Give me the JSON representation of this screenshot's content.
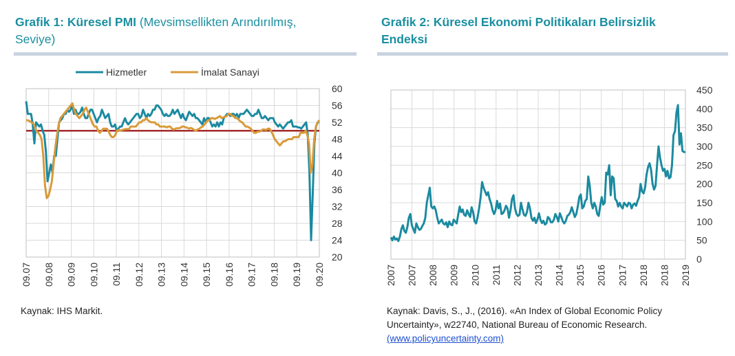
{
  "left": {
    "title_bold": "Grafik 1: Küresel PMI",
    "title_rest": " (Mevsimsellikten Arındırılmış, Seviye)",
    "source": "Kaynak: IHS Markit."
  },
  "right": {
    "title_bold": "Grafik 2: Küresel Ekonomi Politikaları Belirsizlik Endeksi",
    "source_text": "Kaynak: Davis, S., J., (2016). «An Index of Global Economic Policy Uncertainty», w22740, National Bureau of Economic Research.",
    "source_link": "(www.policyuncertainty.com)"
  },
  "colors": {
    "accent": "#1a8fa0",
    "services": "#1b8aa0",
    "manufacturing": "#d99a3a",
    "reference": "#a52a2a"
  },
  "chart_data": [
    {
      "type": "line",
      "ylim": [
        20,
        60
      ],
      "yticks": [
        "20",
        "24",
        "28",
        "32",
        "36",
        "40",
        "44",
        "48",
        "52",
        "56",
        "60"
      ],
      "xticks": [
        "09.07",
        "09.08",
        "09.09",
        "09.10",
        "09.11",
        "09.12",
        "09.13",
        "09.14",
        "09.15",
        "09.16",
        "09.17",
        "09.18",
        "09.19",
        "09.20"
      ],
      "legend_position": "top",
      "grid": true,
      "reference_line": 50,
      "series": [
        {
          "name": "Hizmetler",
          "values": [
            57,
            54,
            54,
            54,
            51.5,
            47,
            52,
            51.5,
            51,
            51.5,
            50,
            49,
            45,
            38,
            40,
            42,
            40,
            44,
            44,
            48,
            52,
            52.5,
            53,
            54,
            54,
            55,
            54.5,
            55,
            56,
            54,
            55,
            54,
            54,
            54.5,
            55.5,
            54,
            53,
            53,
            54,
            55,
            55,
            54,
            53,
            52,
            53,
            53.5,
            55,
            54,
            53,
            53.5,
            54,
            52,
            51,
            51,
            51.5,
            50,
            50.5,
            51,
            51,
            52,
            53,
            52,
            51.5,
            52,
            52.5,
            53,
            53.5,
            54,
            54,
            53,
            53.5,
            55,
            54,
            53,
            54,
            53.5,
            54,
            55,
            55,
            56,
            56,
            55.5,
            55,
            54,
            53.5,
            54,
            53.5,
            53.5,
            54,
            55,
            54,
            54.5,
            55,
            54,
            53,
            54,
            53,
            52.5,
            53.5,
            54.5,
            54,
            53.5,
            54,
            53,
            53,
            52.5,
            52,
            51.5,
            53,
            52,
            53,
            53,
            52,
            51,
            51.5,
            51,
            52,
            51,
            52,
            51.5,
            53,
            53.5,
            54,
            54,
            53.5,
            54,
            54,
            53.5,
            54,
            53,
            54,
            54,
            54,
            54.5,
            55,
            54.5,
            54,
            53.5,
            53.5,
            54,
            54,
            55,
            54,
            53,
            53,
            53.5,
            53,
            52.5,
            53,
            53,
            53,
            52,
            51.5,
            51,
            51.5,
            51,
            50.5,
            51,
            51.5,
            52,
            52,
            52.5,
            51,
            51,
            51,
            50.8,
            50.8,
            50.5,
            51,
            51.5,
            52,
            49,
            40,
            24,
            35,
            47,
            51,
            52,
            52
          ]
        },
        {
          "name": "İmalat Sanayi",
          "values": [
            52.5,
            52.5,
            52.3,
            52,
            51.8,
            51,
            50,
            49.5,
            49,
            48,
            44,
            37,
            34,
            34.5,
            36,
            38,
            42,
            46,
            49,
            51.5,
            53,
            53.5,
            54,
            54.5,
            55,
            55.5,
            56,
            56.5,
            55,
            54,
            53.5,
            53,
            53.5,
            54,
            55,
            55.5,
            54.5,
            53.5,
            52.5,
            51.5,
            51,
            51,
            50,
            49.5,
            50,
            50.5,
            50.5,
            50.5,
            50,
            49,
            48.5,
            48.5,
            49,
            50,
            50.2,
            50,
            50.2,
            50.3,
            50.4,
            50.4,
            50.4,
            51,
            51,
            51,
            51,
            51.5,
            52,
            52,
            52.5,
            52.5,
            53,
            52.5,
            52.2,
            52,
            52,
            52,
            51.5,
            51.5,
            51,
            51,
            51,
            51,
            50.8,
            51,
            51,
            50.5,
            50.3,
            50.5,
            50.6,
            50.6,
            50.7,
            51,
            51,
            50.8,
            50.7,
            50.5,
            50.7,
            50.5,
            50.2,
            50,
            50.3,
            50.5,
            50.8,
            51,
            51.5,
            52,
            52.5,
            52.5,
            53,
            53,
            52.8,
            53,
            53.2,
            53.5,
            53,
            53.2,
            53.3,
            53.5,
            54,
            54,
            53.5,
            53.5,
            53,
            53,
            52.6,
            52.2,
            52,
            51.5,
            51,
            51,
            50.8,
            50.5,
            50,
            49.5,
            49.5,
            49.8,
            49.8,
            50,
            50.3,
            50.3,
            50.2,
            50.5,
            50.5,
            49.8,
            49,
            48,
            47.5,
            47,
            46.5,
            47,
            47.5,
            47.5,
            47.8,
            48,
            48,
            48,
            48.5,
            48.5,
            48.5,
            48.5,
            49.5,
            49.5,
            49.5,
            50,
            49,
            47,
            40,
            42,
            48,
            51,
            52,
            52.5
          ]
        }
      ]
    },
    {
      "type": "line",
      "ylim": [
        0,
        450
      ],
      "yticks": [
        "0",
        "50",
        "100",
        "150",
        "200",
        "250",
        "300",
        "350",
        "400",
        "450"
      ],
      "xticks": [
        "2007",
        "2007",
        "2008",
        "2009",
        "2010",
        "2011",
        "2012",
        "2013",
        "2014",
        "2015",
        "2016",
        "2017",
        "2018",
        "2018",
        "2019"
      ],
      "grid": true,
      "series": [
        {
          "values": [
            58,
            50,
            60,
            52,
            55,
            48,
            60,
            80,
            90,
            75,
            70,
            85,
            110,
            120,
            90,
            80,
            70,
            95,
            85,
            78,
            80,
            88,
            95,
            110,
            150,
            170,
            190,
            140,
            135,
            140,
            130,
            110,
            95,
            100,
            105,
            95,
            92,
            98,
            85,
            100,
            92,
            90,
            105,
            100,
            95,
            118,
            140,
            125,
            132,
            118,
            115,
            130,
            120,
            112,
            138,
            125,
            100,
            95,
            112,
            135,
            165,
            205,
            190,
            180,
            170,
            178,
            160,
            148,
            130,
            120,
            130,
            155,
            135,
            148,
            120,
            122,
            130,
            142,
            135,
            110,
            130,
            160,
            170,
            135,
            120,
            115,
            118,
            150,
            132,
            118,
            115,
            125,
            150,
            135,
            110,
            102,
            110,
            96,
            105,
            122,
            105,
            96,
            102,
            92,
            95,
            112,
            108,
            98,
            98,
            105,
            120,
            112,
            100,
            122,
            112,
            100,
            95,
            102,
            115,
            118,
            125,
            138,
            125,
            112,
            120,
            140,
            165,
            172,
            135,
            140,
            155,
            160,
            220,
            195,
            150,
            135,
            150,
            140,
            120,
            115,
            142,
            165,
            145,
            150,
            230,
            225,
            250,
            170,
            220,
            215,
            160,
            155,
            140,
            150,
            140,
            135,
            150,
            145,
            140,
            150,
            148,
            135,
            145,
            148,
            142,
            155,
            165,
            200,
            180,
            175,
            190,
            225,
            245,
            255,
            238,
            200,
            185,
            195,
            250,
            300,
            270,
            250,
            235,
            240,
            220,
            235,
            215,
            218,
            250,
            330,
            340,
            390,
            410,
            305,
            335,
            288,
            285,
            285
          ]
        }
      ]
    }
  ]
}
